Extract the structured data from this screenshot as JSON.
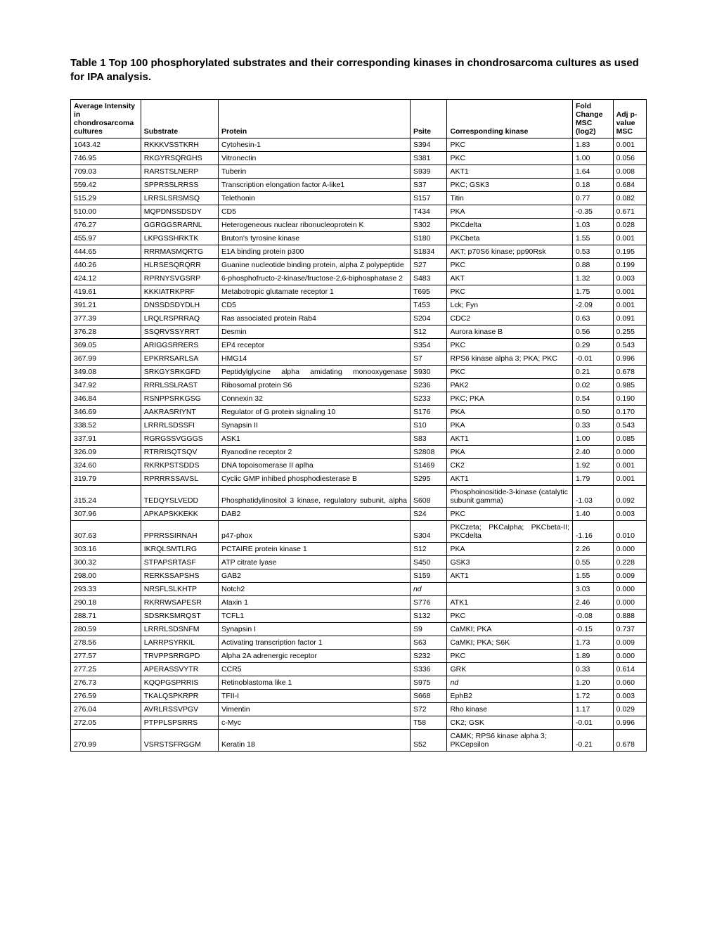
{
  "title": "Table 1 Top 100 phosphorylated substrates and their corresponding kinases in chondrosarcoma cultures as used for IPA analysis.",
  "table": {
    "columns": [
      "Average Intensity in chondrosarcoma cultures",
      "Substrate",
      "Protein",
      "Psite",
      "Corresponding kinase",
      "Fold Change MSC (log2)",
      "Adj p-value MSC"
    ],
    "rows": [
      [
        "1043.42",
        "RKKKVSSTKRH",
        "Cytohesin-1",
        "S394",
        "PKC",
        "1.83",
        "0.001"
      ],
      [
        "746.95",
        "RKGYRSQRGHS",
        "Vitronectin",
        "S381",
        "PKC",
        "1.00",
        "0.056"
      ],
      [
        "709.03",
        "RARSTSLNERP",
        "Tuberin",
        "S939",
        "AKT1",
        "1.64",
        "0.008"
      ],
      [
        "559.42",
        "SPPRSSLRRSS",
        "Transcription elongation factor A-like1",
        "S37",
        "PKC; GSK3",
        "0.18",
        "0.684"
      ],
      [
        "515.29",
        "LRRSLSRSMSQ",
        "Telethonin",
        "S157",
        "Titin",
        "0.77",
        "0.082"
      ],
      [
        "510.00",
        "MQPDNSSDSDY",
        "CD5",
        "T434",
        "PKA",
        "-0.35",
        "0.671"
      ],
      [
        "476.27",
        "GGRGGSRARNL",
        "Heterogeneous nuclear ribonucleoprotein K",
        "S302",
        "PKCdelta",
        "1.03",
        "0.028"
      ],
      [
        "455.97",
        "LKPGSSHRKTK",
        "Bruton's tyrosine kinase",
        "S180",
        "PKCbeta",
        "1.55",
        "0.001"
      ],
      [
        "444.65",
        "RRRMASMQRTG",
        "E1A binding protein p300",
        "S1834",
        "AKT; p70S6 kinase; pp90Rsk",
        "0.53",
        "0.195"
      ],
      [
        "440.26",
        "HLRSESQRQRR",
        "Guanine nucleotide binding protein, alpha Z polypeptide",
        "S27",
        "PKC",
        "0.88",
        "0.199"
      ],
      [
        "424.12",
        "RPRNYSVGSRP",
        "6-phosphofructo-2-kinase/fructose-2,6-biphosphatase 2",
        "S483",
        "AKT",
        "1.32",
        "0.003"
      ],
      [
        "419.61",
        "KKKIATRKPRF",
        "Metabotropic glutamate receptor 1",
        "T695",
        "PKC",
        "1.75",
        "0.001"
      ],
      [
        "391.21",
        "DNSSDSDYDLH",
        "CD5",
        "T453",
        "Lck; Fyn",
        "-2.09",
        "0.001"
      ],
      [
        "377.39",
        "LRQLRSPRRAQ",
        "Ras associated protein Rab4",
        "S204",
        "CDC2",
        "0.63",
        "0.091"
      ],
      [
        "376.28",
        "SSQRVSSYRRT",
        "Desmin",
        "S12",
        "Aurora kinase B",
        "0.56",
        "0.255"
      ],
      [
        "369.05",
        "ARIGGSRRERS",
        "EP4 receptor",
        "S354",
        "PKC",
        "0.29",
        "0.543"
      ],
      [
        "367.99",
        "EPKRRSARLSA",
        "HMG14",
        "S7",
        "RPS6 kinase alpha 3; PKA; PKC",
        "-0.01",
        "0.996"
      ],
      [
        "349.08",
        "SRKGYSRKGFD",
        "Peptidylglycine alpha amidating monooxygenase",
        "S930",
        "PKC",
        "0.21",
        "0.678"
      ],
      [
        "347.92",
        "RRRLSSLRAST",
        "Ribosomal protein S6",
        "S236",
        "PAK2",
        "0.02",
        "0.985"
      ],
      [
        "346.84",
        "RSNPPSRKGSG",
        "Connexin 32",
        "S233",
        "PKC; PKA",
        "0.54",
        "0.190"
      ],
      [
        "346.69",
        "AAKRASRIYNT",
        "Regulator of G protein signaling 10",
        "S176",
        "PKA",
        "0.50",
        "0.170"
      ],
      [
        "338.52",
        "LRRRLSDSSFI",
        "Synapsin II",
        "S10",
        "PKA",
        "0.33",
        "0.543"
      ],
      [
        "337.91",
        "RGRGSSVGGGS",
        "ASK1",
        "S83",
        "AKT1",
        "1.00",
        "0.085"
      ],
      [
        "326.09",
        "RTRRISQTSQV",
        "Ryanodine receptor 2",
        "S2808",
        "PKA",
        "2.40",
        "0.000"
      ],
      [
        "324.60",
        "RKRKPSTSDDS",
        "DNA topoisomerase II aplha",
        "S1469",
        "CK2",
        "1.92",
        "0.001"
      ],
      [
        "319.79",
        "RPRRRSSAVSL",
        "Cyclic GMP inhibed phosphodiesterase B",
        "S295",
        "AKT1",
        "1.79",
        "0.001"
      ],
      [
        "315.24",
        "TEDQYSLVEDD",
        "Phosphatidylinositol 3 kinase, regulatory subunit, alpha",
        "S608",
        "Phosphoinositide-3-kinase (catalytic subunit gamma)",
        "-1.03",
        "0.092"
      ],
      [
        "307.96",
        "APKAPSKKEKK",
        "DAB2",
        "S24",
        "PKC",
        "1.40",
        "0.003"
      ],
      [
        "307.63",
        "PPRRSSIRNAH",
        "p47-phox",
        "S304",
        "PKCzeta; PKCalpha; PKCbeta-II; PKCdelta",
        "-1.16",
        "0.010"
      ],
      [
        "303.16",
        "IKRQLSMTLRG",
        "PCTAIRE protein kinase 1",
        "S12",
        "PKA",
        "2.26",
        "0.000"
      ],
      [
        "300.32",
        "STPAPSRTASF",
        "ATP citrate lyase",
        "S450",
        "GSK3",
        "0.55",
        "0.228"
      ],
      [
        "298.00",
        "RERKSSAPSHS",
        "GAB2",
        "S159",
        "AKT1",
        "1.55",
        "0.009"
      ],
      [
        "293.33",
        "NRSFLSLKHTP",
        "Notch2",
        "nd",
        "",
        "3.03",
        "0.000"
      ],
      [
        "290.18",
        "RKRRWSAPESR",
        "Ataxin 1",
        "S776",
        "ATK1",
        "2.46",
        "0.000"
      ],
      [
        "288.71",
        "SDSRKSMRQST",
        "TCFL1",
        "S132",
        "PKC",
        "-0.08",
        "0.888"
      ],
      [
        "280.59",
        "LRRRLSDSNFM",
        "Synapsin I",
        "S9",
        "CaMKI; PKA",
        "-0.15",
        "0.737"
      ],
      [
        "278.56",
        "LARRPSYRKIL",
        "Activating transcription factor 1",
        "S63",
        "CaMKI; PKA; S6K",
        "1.73",
        "0.009"
      ],
      [
        "277.57",
        "TRVPPSRRGPD",
        "Alpha 2A adrenergic receptor",
        "S232",
        "PKC",
        "1.89",
        "0.000"
      ],
      [
        "277.25",
        "APERASSVYTR",
        "CCR5",
        "S336",
        "GRK",
        "0.33",
        "0.614"
      ],
      [
        "276.73",
        "KQQPGSPRRIS",
        "Retinoblastoma like 1",
        "S975",
        "nd",
        "1.20",
        "0.060"
      ],
      [
        "276.59",
        "TKALQSPKRPR",
        "TFII-I",
        "S668",
        "EphB2",
        "1.72",
        "0.003"
      ],
      [
        "276.04",
        "AVRLRSSVPGV",
        "Vimentin",
        "S72",
        "Rho kinase",
        "1.17",
        "0.029"
      ],
      [
        "272.05",
        "PTPPLSPSRRS",
        "c-Myc",
        "T58",
        "CK2; GSK",
        "-0.01",
        "0.996"
      ],
      [
        "270.99",
        "VSRSTSFRGGM",
        "Keratin 18",
        "S52",
        "CAMK; RPS6 kinase alpha 3; PKCepsilon",
        "-0.21",
        "0.678"
      ]
    ],
    "justify_protein_rows": [
      17,
      26,
      28
    ],
    "border_color": "#000000",
    "background_color": "#ffffff",
    "font_size": 10.5,
    "header_font_weight": "bold"
  }
}
